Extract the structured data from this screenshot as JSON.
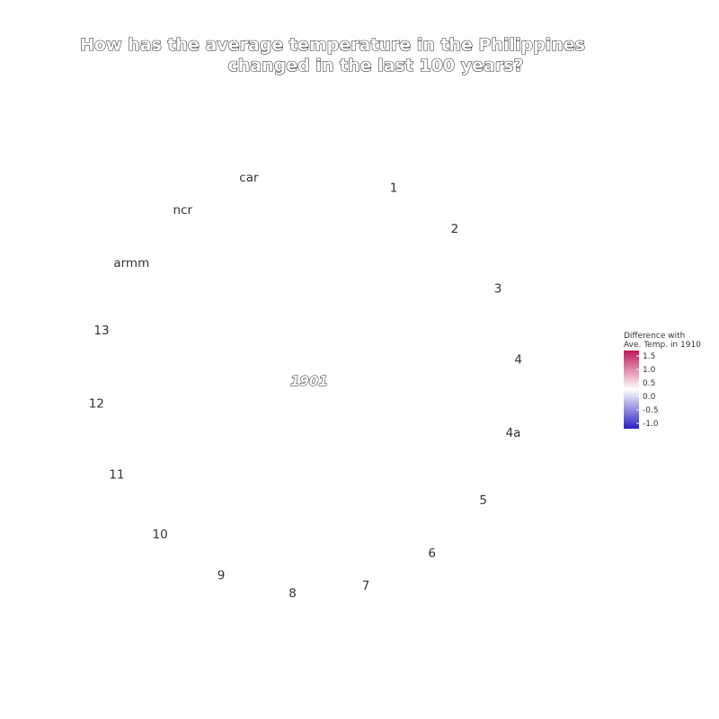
{
  "chart_data": {
    "type": "polar-heatmap",
    "title": "How has the average temperature in the Philippines",
    "subtitle": "changed in the last 100 years?",
    "center_label": "1901",
    "categories": [
      "1",
      "2",
      "3",
      "4",
      "4a",
      "5",
      "6",
      "7",
      "8",
      "9",
      "10",
      "11",
      "12",
      "13",
      "armm",
      "ncr",
      "car"
    ],
    "legend": {
      "title": "Difference with",
      "title2": "Ave. Temp. in 1910",
      "ticks": [
        1.5,
        1.0,
        0.5,
        0.0,
        -0.5,
        -1.0
      ],
      "tick_labels": [
        "1.5",
        "1.0",
        "0.5",
        "0.0",
        "-0.5",
        "-1.0"
      ],
      "range": [
        -1.2,
        1.7
      ],
      "colors": {
        "high": "#c2185b",
        "mid": "#ffffff",
        "low": "#2a1fc4"
      },
      "position": "right"
    }
  }
}
